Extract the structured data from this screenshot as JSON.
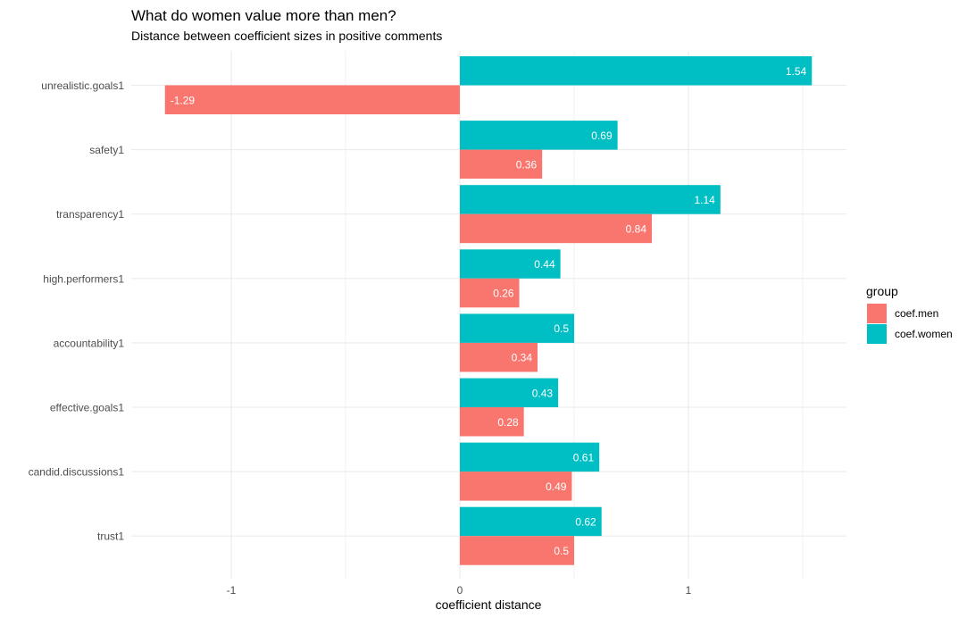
{
  "chart_data": {
    "type": "bar",
    "orientation": "horizontal",
    "title": "What do women value more than men?",
    "subtitle": "Distance between coefficient sizes in positive comments",
    "xlabel": "coefficient distance",
    "ylabel": "",
    "xlim": [
      -1.5,
      1.7
    ],
    "x_ticks": [
      "-1",
      "0",
      "1"
    ],
    "x_tick_values": [
      -1,
      0,
      1
    ],
    "grid": true,
    "categories": [
      "unrealistic.goals1",
      "safety1",
      "transparency1",
      "high.performers1",
      "accountability1",
      "effective.goals1",
      "candid.discussions1",
      "trust1"
    ],
    "series": [
      {
        "name": "coef.men",
        "color": "#F8766D",
        "values": [
          -1.29,
          0.36,
          0.84,
          0.26,
          0.34,
          0.28,
          0.49,
          0.5
        ],
        "labels": [
          "-1.29",
          "0.36",
          "0.84",
          "0.26",
          "0.34",
          "0.28",
          "0.49",
          "0.5"
        ]
      },
      {
        "name": "coef.women",
        "color": "#00BFC4",
        "values": [
          1.54,
          0.69,
          1.14,
          0.44,
          0.5,
          0.43,
          0.61,
          0.62
        ],
        "labels": [
          "1.54",
          "0.69",
          "1.14",
          "0.44",
          "0.5",
          "0.43",
          "0.61",
          "0.62"
        ]
      }
    ],
    "legend": {
      "title": "group",
      "position": "right"
    }
  }
}
